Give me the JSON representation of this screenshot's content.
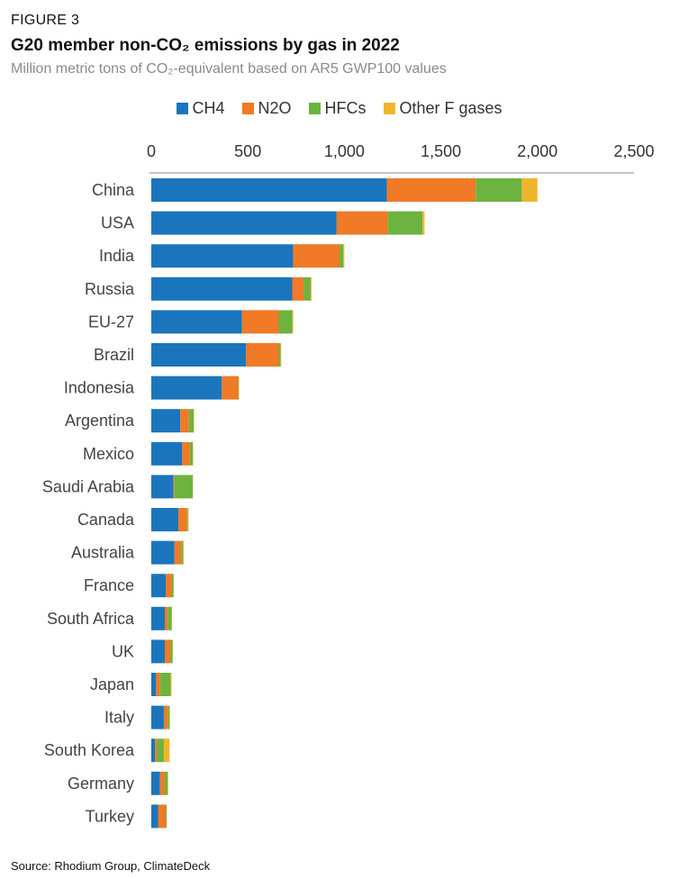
{
  "figure_label": "FIGURE 3",
  "title": "G20 member non-CO₂ emissions by gas in 2022",
  "subtitle": "Million metric tons of CO₂-equivalent based on AR5 GWP100 values",
  "source": "Source: Rhodium Group, ClimateDeck",
  "chart_data": {
    "type": "bar",
    "orientation": "horizontal",
    "stacked": true,
    "categories": [
      "China",
      "USA",
      "India",
      "Russia",
      "EU-27",
      "Brazil",
      "Indonesia",
      "Argentina",
      "Mexico",
      "Saudi Arabia",
      "Canada",
      "Australia",
      "France",
      "South Africa",
      "UK",
      "Japan",
      "Italy",
      "South Korea",
      "Germany",
      "Turkey"
    ],
    "series": [
      {
        "name": "CH4",
        "color": "#1b75bc",
        "values": [
          1220,
          960,
          735,
          730,
          470,
          490,
          365,
          150,
          160,
          115,
          140,
          120,
          75,
          70,
          70,
          25,
          65,
          20,
          45,
          35
        ]
      },
      {
        "name": "N2O",
        "color": "#f07a26",
        "values": [
          460,
          265,
          240,
          60,
          190,
          170,
          85,
          45,
          40,
          5,
          45,
          35,
          30,
          15,
          30,
          20,
          20,
          10,
          25,
          40
        ]
      },
      {
        "name": "HFCs",
        "color": "#6db33f",
        "values": [
          240,
          180,
          20,
          35,
          70,
          10,
          3,
          25,
          15,
          95,
          5,
          10,
          10,
          20,
          10,
          55,
          10,
          35,
          15,
          5
        ]
      },
      {
        "name": "Other F gases",
        "color": "#f0b62b",
        "values": [
          80,
          10,
          5,
          5,
          5,
          3,
          2,
          2,
          2,
          1,
          3,
          3,
          2,
          2,
          2,
          5,
          2,
          30,
          3,
          1
        ]
      }
    ],
    "xlim": [
      0,
      2500
    ],
    "xticks": [
      0,
      500,
      1000,
      1500,
      2000,
      2500
    ],
    "xtick_labels": [
      "0",
      "500",
      "1,000",
      "1,500",
      "2,000",
      "2,500"
    ],
    "xaxis_position": "top",
    "legend_position": "top",
    "grid": false
  }
}
